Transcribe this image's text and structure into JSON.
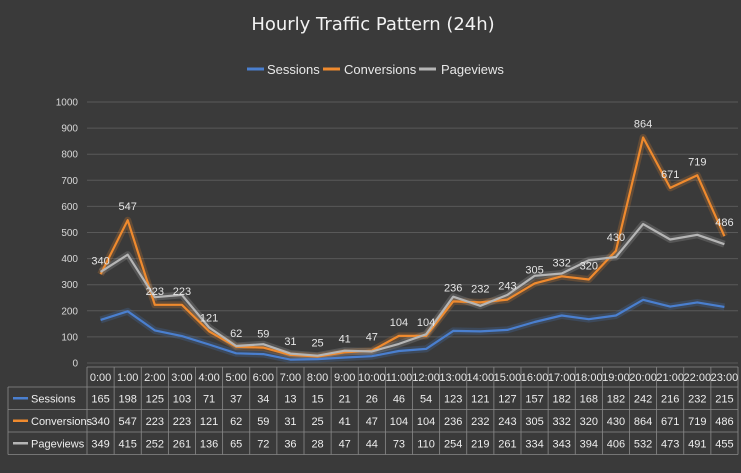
{
  "chart_data": {
    "type": "line",
    "title": "Hourly Traffic Pattern (24h)",
    "categories": [
      "0:00",
      "1:00",
      "2:00",
      "3:00",
      "4:00",
      "5:00",
      "6:00",
      "7:00",
      "8:00",
      "9:00",
      "10:00",
      "11:00",
      "12:00",
      "13:00",
      "14:00",
      "15:00",
      "16:00",
      "17:00",
      "18:00",
      "19:00",
      "20:00",
      "21:00",
      "22:00",
      "23:00"
    ],
    "ylim": [
      0,
      1000
    ],
    "yticks": [
      0,
      100,
      200,
      300,
      400,
      500,
      600,
      700,
      800,
      900,
      1000
    ],
    "grid": true,
    "legend_position": "top",
    "data_table": true,
    "series": [
      {
        "name": "Sessions",
        "color": "#4a7fcf",
        "values": [
          165,
          198,
          125,
          103,
          71,
          37,
          34,
          13,
          15,
          21,
          26,
          46,
          54,
          123,
          121,
          127,
          157,
          182,
          168,
          182,
          242,
          216,
          232,
          215
        ]
      },
      {
        "name": "Conversions",
        "color": "#ef8a2e",
        "values": [
          340,
          547,
          223,
          223,
          121,
          62,
          59,
          31,
          25,
          41,
          47,
          104,
          104,
          236,
          232,
          243,
          305,
          332,
          320,
          430,
          864,
          671,
          719,
          486
        ]
      },
      {
        "name": "Pageviews",
        "color": "#b5b5b5",
        "values": [
          349,
          415,
          252,
          261,
          136,
          65,
          72,
          36,
          28,
          47,
          44,
          73,
          110,
          254,
          219,
          261,
          334,
          343,
          394,
          406,
          532,
          473,
          491,
          455
        ]
      }
    ],
    "data_labels_series": "Conversions"
  }
}
